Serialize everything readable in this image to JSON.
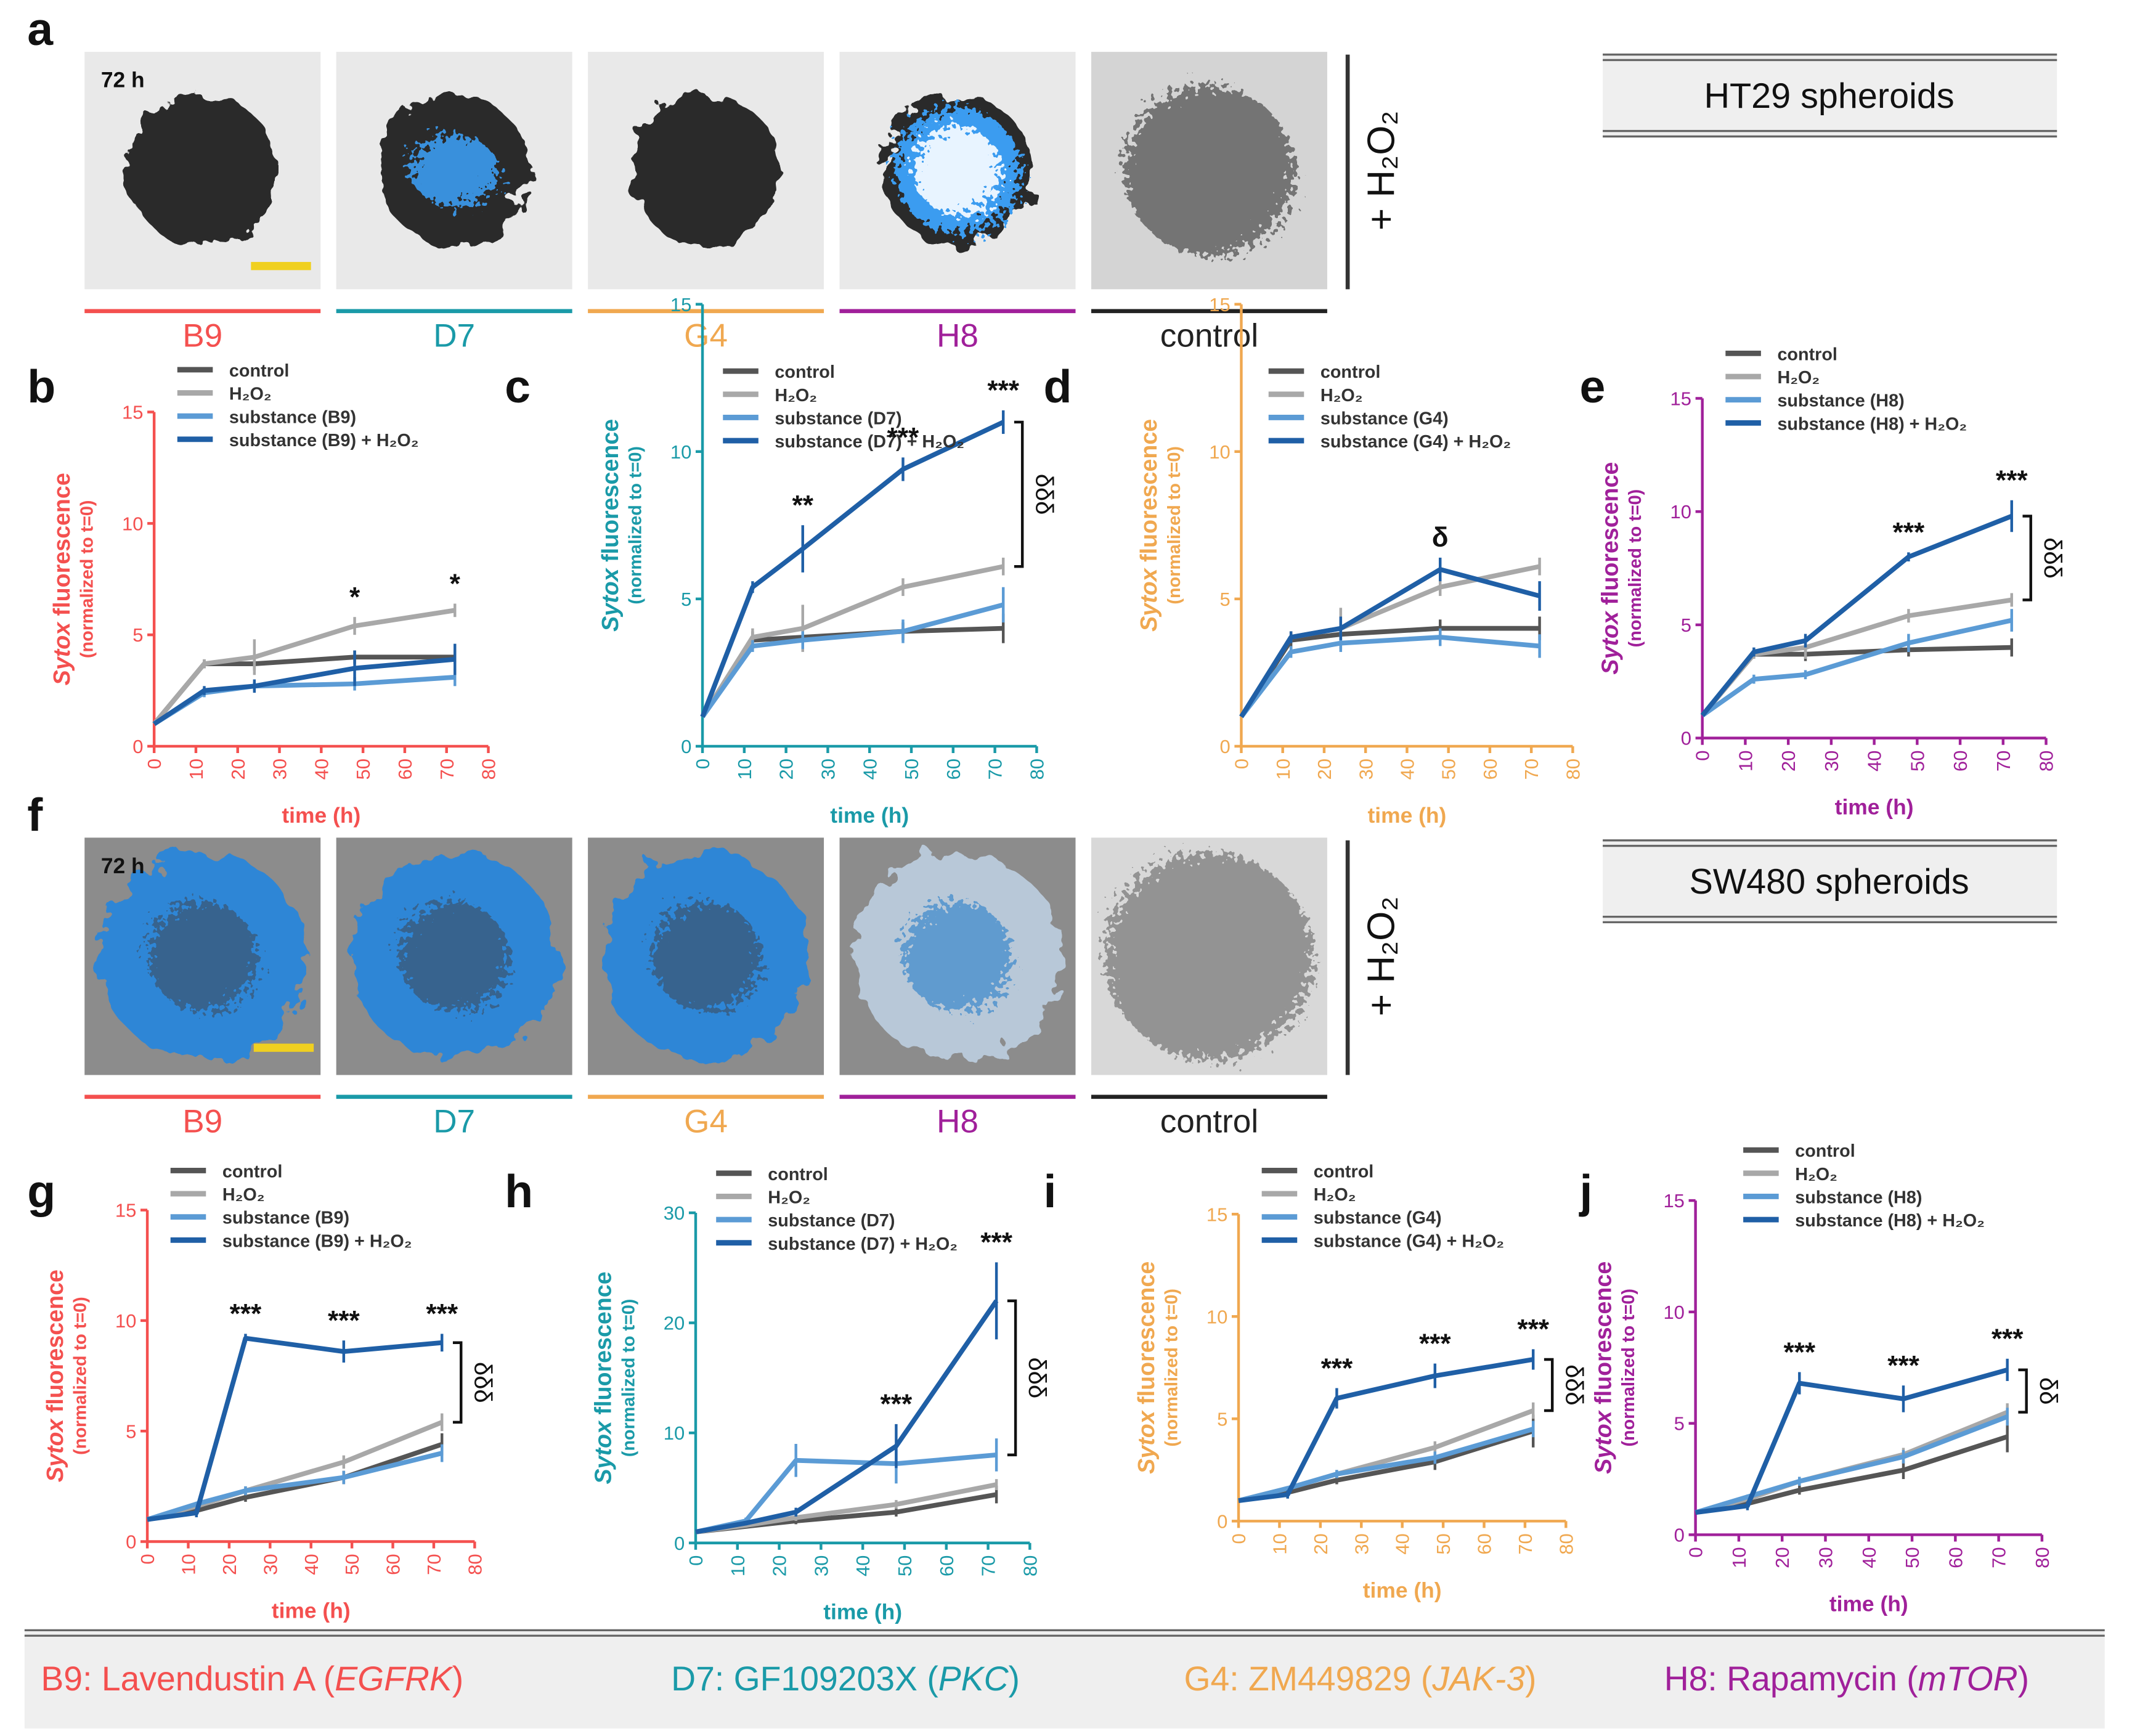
{
  "image_rows": [
    {
      "panel": "a",
      "time": "72 h",
      "labels": [
        "B9",
        "D7",
        "G4",
        "H8",
        "control"
      ],
      "label_colors": [
        "#f4504f",
        "#1a9aa8",
        "#f0a850",
        "#a0209a",
        "#222222"
      ],
      "side_label": "+ H₂O₂",
      "cell_line": "HT29 spheroids",
      "style": "ht29"
    },
    {
      "panel": "f",
      "time": "72 h",
      "labels": [
        "B9",
        "D7",
        "G4",
        "H8",
        "control"
      ],
      "label_colors": [
        "#f4504f",
        "#1a9aa8",
        "#f0a850",
        "#a0209a",
        "#222222"
      ],
      "side_label": "+ H₂O₂",
      "cell_line": "SW480 spheroids",
      "style": "sw480"
    }
  ],
  "chart_data": [
    {
      "type": "line",
      "panel": "b",
      "color": "#f4504f",
      "ylabel": [
        "Sytox",
        " fluorescence"
      ],
      "ylabel_note": "(normalized to t=0)",
      "xlabel": "time (h)",
      "x": [
        0,
        12,
        24,
        48,
        72
      ],
      "xlim": [
        0,
        80
      ],
      "xticks": [
        0,
        10,
        20,
        30,
        40,
        50,
        60,
        70,
        80
      ],
      "ylim": [
        0,
        15
      ],
      "yticks": [
        0,
        5,
        10,
        15
      ],
      "series": [
        {
          "name": "control",
          "color": "#555555",
          "values": [
            1,
            3.7,
            3.7,
            4.0,
            4.0
          ],
          "errors": [
            0,
            0.2,
            0.3,
            0.3,
            0.3
          ]
        },
        {
          "name": "H₂O₂",
          "color": "#a8a8a8",
          "values": [
            1,
            3.7,
            4.0,
            5.4,
            6.1
          ],
          "errors": [
            0,
            0.2,
            0.8,
            0.4,
            0.3
          ]
        },
        {
          "name": "substance (B9)",
          "color": "#5b9bd5",
          "values": [
            1,
            2.4,
            2.7,
            2.8,
            3.1
          ],
          "errors": [
            0,
            0.2,
            0.2,
            0.3,
            0.4
          ]
        },
        {
          "name": "substance (B9) + H₂O₂",
          "color": "#1f5fa6",
          "values": [
            1,
            2.5,
            2.7,
            3.5,
            3.9
          ],
          "errors": [
            0,
            0.2,
            0.3,
            0.8,
            0.7
          ]
        }
      ],
      "annotations": [
        {
          "x": 48,
          "text": "*"
        },
        {
          "x": 72,
          "text": "*"
        }
      ],
      "brackets": []
    },
    {
      "type": "line",
      "panel": "c",
      "color": "#1a9aa8",
      "ylabel": [
        "Sytox",
        " fluorescence"
      ],
      "ylabel_note": "(normalized to t=0)",
      "xlabel": "time (h)",
      "x": [
        0,
        12,
        24,
        48,
        72
      ],
      "xlim": [
        0,
        80
      ],
      "xticks": [
        0,
        10,
        20,
        30,
        40,
        50,
        60,
        70,
        80
      ],
      "ylim": [
        0,
        15
      ],
      "yticks": [
        0,
        5,
        10,
        15
      ],
      "series": [
        {
          "name": "control",
          "color": "#555555",
          "values": [
            1,
            3.6,
            3.7,
            3.9,
            4.0
          ],
          "errors": [
            0,
            0.3,
            0.3,
            0.3,
            0.5
          ]
        },
        {
          "name": "H₂O₂",
          "color": "#a8a8a8",
          "values": [
            1,
            3.7,
            4.0,
            5.4,
            6.1
          ],
          "errors": [
            0,
            0.3,
            0.8,
            0.3,
            0.3
          ]
        },
        {
          "name": "substance (D7)",
          "color": "#5b9bd5",
          "values": [
            1,
            3.4,
            3.6,
            3.9,
            4.8
          ],
          "errors": [
            0,
            0.2,
            0.3,
            0.4,
            0.6
          ]
        },
        {
          "name": "substance (D7) + H₂O₂",
          "color": "#1f5fa6",
          "values": [
            1,
            5.4,
            6.7,
            9.4,
            11.0
          ],
          "errors": [
            0,
            0.2,
            0.8,
            0.4,
            0.4
          ]
        }
      ],
      "annotations": [
        {
          "x": 24,
          "text": "**"
        },
        {
          "x": 48,
          "text": "***"
        },
        {
          "x": 72,
          "text": "***"
        }
      ],
      "brackets": [
        {
          "x": 72,
          "text": "δδδ"
        }
      ]
    },
    {
      "type": "line",
      "panel": "d",
      "color": "#f0a850",
      "ylabel": [
        "Sytox",
        " fluorescence"
      ],
      "ylabel_note": "(normalized to t=0)",
      "xlabel": "time (h)",
      "x": [
        0,
        12,
        24,
        48,
        72
      ],
      "xlim": [
        0,
        80
      ],
      "xticks": [
        0,
        10,
        20,
        30,
        40,
        50,
        60,
        70,
        80
      ],
      "ylim": [
        0,
        15
      ],
      "yticks": [
        0,
        5,
        10,
        15
      ],
      "series": [
        {
          "name": "control",
          "color": "#555555",
          "values": [
            1,
            3.6,
            3.8,
            4.0,
            4.0
          ],
          "errors": [
            0,
            0.3,
            0.3,
            0.3,
            0.4
          ]
        },
        {
          "name": "H₂O₂",
          "color": "#a8a8a8",
          "values": [
            1,
            3.7,
            4.0,
            5.4,
            6.1
          ],
          "errors": [
            0,
            0.2,
            0.7,
            0.3,
            0.3
          ]
        },
        {
          "name": "substance (G4)",
          "color": "#5b9bd5",
          "values": [
            1,
            3.2,
            3.5,
            3.7,
            3.4
          ],
          "errors": [
            0,
            0.2,
            0.3,
            0.3,
            0.4
          ]
        },
        {
          "name": "substance (G4) + H₂O₂",
          "color": "#1f5fa6",
          "values": [
            1,
            3.7,
            4.0,
            6.0,
            5.1
          ],
          "errors": [
            0,
            0.2,
            0.4,
            0.4,
            0.5
          ]
        }
      ],
      "annotations": [
        {
          "x": 48,
          "text": "δ"
        }
      ],
      "brackets": []
    },
    {
      "type": "line",
      "panel": "e",
      "color": "#a0209a",
      "ylabel": [
        "Sytox",
        " fluorescence"
      ],
      "ylabel_note": "(normalized to t=0)",
      "xlabel": "time (h)",
      "x": [
        0,
        12,
        24,
        48,
        72
      ],
      "xlim": [
        0,
        80
      ],
      "xticks": [
        0,
        10,
        20,
        30,
        40,
        50,
        60,
        70,
        80
      ],
      "ylim": [
        0,
        15
      ],
      "yticks": [
        0,
        5,
        10,
        15
      ],
      "series": [
        {
          "name": "control",
          "color": "#555555",
          "values": [
            1,
            3.7,
            3.7,
            3.9,
            4.0
          ],
          "errors": [
            0,
            0.2,
            0.3,
            0.3,
            0.4
          ]
        },
        {
          "name": "H₂O₂",
          "color": "#a8a8a8",
          "values": [
            1,
            3.7,
            4.0,
            5.4,
            6.1
          ],
          "errors": [
            0,
            0.2,
            0.5,
            0.3,
            0.3
          ]
        },
        {
          "name": "substance (H8)",
          "color": "#5b9bd5",
          "values": [
            1,
            2.6,
            2.8,
            4.2,
            5.2
          ],
          "errors": [
            0,
            0.2,
            0.2,
            0.4,
            0.5
          ]
        },
        {
          "name": "substance (H8) + H₂O₂",
          "color": "#1f5fa6",
          "values": [
            1,
            3.8,
            4.3,
            8.0,
            9.8
          ],
          "errors": [
            0,
            0.2,
            0.3,
            0.2,
            0.7
          ]
        }
      ],
      "annotations": [
        {
          "x": 48,
          "text": "***"
        },
        {
          "x": 72,
          "text": "***"
        }
      ],
      "brackets": [
        {
          "x": 72,
          "text": "δδδ"
        }
      ]
    },
    {
      "type": "line",
      "panel": "g",
      "color": "#f4504f",
      "ylabel": [
        "Sytox",
        " fluorescence"
      ],
      "ylabel_note": "(normalized to t=0)",
      "xlabel": "time (h)",
      "x": [
        0,
        12,
        24,
        48,
        72
      ],
      "xlim": [
        0,
        80
      ],
      "xticks": [
        0,
        10,
        20,
        30,
        40,
        50,
        60,
        70,
        80
      ],
      "ylim": [
        0,
        15
      ],
      "yticks": [
        0,
        5,
        10,
        15
      ],
      "series": [
        {
          "name": "control",
          "color": "#555555",
          "values": [
            1,
            1.4,
            2.0,
            2.9,
            4.4
          ],
          "errors": [
            0,
            0.1,
            0.2,
            0.3,
            0.5
          ]
        },
        {
          "name": "H₂O₂",
          "color": "#a8a8a8",
          "values": [
            1,
            1.6,
            2.3,
            3.6,
            5.4
          ],
          "errors": [
            0,
            0.1,
            0.2,
            0.3,
            0.4
          ]
        },
        {
          "name": "substance (B9)",
          "color": "#5b9bd5",
          "values": [
            1,
            1.7,
            2.3,
            2.9,
            4.0
          ],
          "errors": [
            0,
            0.1,
            0.2,
            0.3,
            0.4
          ]
        },
        {
          "name": "substance (B9) + H₂O₂",
          "color": "#1f5fa6",
          "values": [
            1,
            1.3,
            9.2,
            8.6,
            9.0
          ],
          "errors": [
            0,
            0.2,
            0.2,
            0.5,
            0.4
          ]
        }
      ],
      "annotations": [
        {
          "x": 24,
          "text": "***"
        },
        {
          "x": 48,
          "text": "***"
        },
        {
          "x": 72,
          "text": "***"
        }
      ],
      "brackets": [
        {
          "x": 72,
          "text": "δδδ"
        }
      ]
    },
    {
      "type": "line",
      "panel": "h",
      "color": "#1a9aa8",
      "ylabel": [
        "Sytox",
        " fluorescence"
      ],
      "ylabel_note": "(normalized to t=0)",
      "xlabel": "time (h)",
      "x": [
        0,
        12,
        24,
        48,
        72
      ],
      "xlim": [
        0,
        80
      ],
      "xticks": [
        0,
        10,
        20,
        30,
        40,
        50,
        60,
        70,
        80
      ],
      "ylim": [
        0,
        30
      ],
      "yticks": [
        0,
        10,
        20,
        30
      ],
      "series": [
        {
          "name": "control",
          "color": "#555555",
          "values": [
            1,
            1.5,
            2.0,
            2.8,
            4.4
          ],
          "errors": [
            0,
            0.2,
            0.3,
            0.4,
            0.8
          ]
        },
        {
          "name": "H₂O₂",
          "color": "#a8a8a8",
          "values": [
            1,
            1.6,
            2.3,
            3.5,
            5.3
          ],
          "errors": [
            0,
            0.2,
            0.3,
            0.4,
            0.5
          ]
        },
        {
          "name": "substance (D7)",
          "color": "#5b9bd5",
          "values": [
            1,
            2.0,
            7.5,
            7.2,
            8.0
          ],
          "errors": [
            0,
            0.3,
            1.5,
            1.8,
            1.5
          ]
        },
        {
          "name": "substance (D7) + H₂O₂",
          "color": "#1f5fa6",
          "values": [
            1,
            1.8,
            2.8,
            8.8,
            22.0
          ],
          "errors": [
            0,
            0.2,
            0.4,
            2.0,
            3.5
          ]
        }
      ],
      "annotations": [
        {
          "x": 48,
          "text": "***"
        },
        {
          "x": 72,
          "text": "***"
        }
      ],
      "brackets": [
        {
          "x": 72,
          "text": "δδδ"
        }
      ]
    },
    {
      "type": "line",
      "panel": "i",
      "color": "#f0a850",
      "ylabel": [
        "Sytox",
        " fluorescence"
      ],
      "ylabel_note": "(normalized to t=0)",
      "xlabel": "time (h)",
      "x": [
        0,
        12,
        24,
        48,
        72
      ],
      "xlim": [
        0,
        80
      ],
      "xticks": [
        0,
        10,
        20,
        30,
        40,
        50,
        60,
        70,
        80
      ],
      "ylim": [
        0,
        15
      ],
      "yticks": [
        0,
        5,
        10,
        15
      ],
      "series": [
        {
          "name": "control",
          "color": "#555555",
          "values": [
            1,
            1.4,
            2.0,
            2.9,
            4.4
          ],
          "errors": [
            0,
            0.1,
            0.2,
            0.4,
            0.8
          ]
        },
        {
          "name": "H₂O₂",
          "color": "#a8a8a8",
          "values": [
            1,
            1.6,
            2.3,
            3.6,
            5.4
          ],
          "errors": [
            0,
            0.1,
            0.2,
            0.3,
            0.4
          ]
        },
        {
          "name": "substance (G4)",
          "color": "#5b9bd5",
          "values": [
            1,
            1.6,
            2.3,
            3.1,
            4.5
          ],
          "errors": [
            0,
            0.1,
            0.2,
            0.3,
            0.4
          ]
        },
        {
          "name": "substance (G4) + H₂O₂",
          "color": "#1f5fa6",
          "values": [
            1,
            1.3,
            6.0,
            7.1,
            7.9
          ],
          "errors": [
            0,
            0.2,
            0.5,
            0.6,
            0.5
          ]
        }
      ],
      "annotations": [
        {
          "x": 24,
          "text": "***"
        },
        {
          "x": 48,
          "text": "***"
        },
        {
          "x": 72,
          "text": "***"
        }
      ],
      "brackets": [
        {
          "x": 72,
          "text": "δδδ"
        }
      ]
    },
    {
      "type": "line",
      "panel": "j",
      "color": "#a0209a",
      "ylabel": [
        "Sytox",
        " fluorescence"
      ],
      "ylabel_note": "(normalized to t=0)",
      "xlabel": "time (h)",
      "x": [
        0,
        12,
        24,
        48,
        72
      ],
      "xlim": [
        0,
        80
      ],
      "xticks": [
        0,
        10,
        20,
        30,
        40,
        50,
        60,
        70,
        80
      ],
      "ylim": [
        0,
        15
      ],
      "yticks": [
        0,
        5,
        10,
        15
      ],
      "series": [
        {
          "name": "control",
          "color": "#555555",
          "values": [
            1,
            1.4,
            2.0,
            2.9,
            4.4
          ],
          "errors": [
            0,
            0.1,
            0.2,
            0.4,
            0.7
          ]
        },
        {
          "name": "H₂O₂",
          "color": "#a8a8a8",
          "values": [
            1,
            1.6,
            2.4,
            3.6,
            5.5
          ],
          "errors": [
            0,
            0.1,
            0.2,
            0.3,
            0.4
          ]
        },
        {
          "name": "substance (H8)",
          "color": "#5b9bd5",
          "values": [
            1,
            1.7,
            2.4,
            3.5,
            5.3
          ],
          "errors": [
            0,
            0.1,
            0.2,
            0.3,
            0.4
          ]
        },
        {
          "name": "substance (H8) + H₂O₂",
          "color": "#1f5fa6",
          "values": [
            1,
            1.3,
            6.8,
            6.1,
            7.4
          ],
          "errors": [
            0,
            0.2,
            0.5,
            0.6,
            0.5
          ]
        }
      ],
      "annotations": [
        {
          "x": 24,
          "text": "***"
        },
        {
          "x": 48,
          "text": "***"
        },
        {
          "x": 72,
          "text": "***"
        }
      ],
      "brackets": [
        {
          "x": 72,
          "text": "δδ"
        }
      ]
    }
  ],
  "footer": [
    {
      "text": "B9: Lavendustin A (",
      "italic": "EGFRK",
      "end": ")",
      "color": "#f4504f"
    },
    {
      "text": "D7: GF109203X (",
      "italic": "PKC",
      "end": ")",
      "color": "#1a9aa8"
    },
    {
      "text": "G4: ZM449829 (",
      "italic": "JAK-3",
      "end": ")",
      "color": "#f0a850"
    },
    {
      "text": "H8: Rapamycin (",
      "italic": "mTOR",
      "end": ")",
      "color": "#a0209a"
    }
  ]
}
